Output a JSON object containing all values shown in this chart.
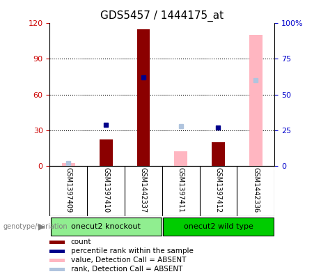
{
  "title": "GDS5457 / 1444175_at",
  "samples": [
    "GSM1397409",
    "GSM1397410",
    "GSM1442337",
    "GSM1397411",
    "GSM1397412",
    "GSM1442336"
  ],
  "groups": [
    {
      "name": "onecut2 knockout",
      "color": "#90ee90",
      "start": 0,
      "end": 2
    },
    {
      "name": "onecut2 wild type",
      "color": "#00cc00",
      "start": 3,
      "end": 5
    }
  ],
  "count_values": [
    2.5,
    22,
    115,
    12,
    20,
    110
  ],
  "rank_values": [
    2,
    29,
    62,
    28,
    27,
    60
  ],
  "absent": [
    true,
    false,
    false,
    true,
    false,
    true
  ],
  "ylim_left": [
    0,
    120
  ],
  "ylim_right": [
    0,
    100
  ],
  "yticks_left": [
    0,
    30,
    60,
    90,
    120
  ],
  "yticks_right": [
    0,
    25,
    50,
    75,
    100
  ],
  "yticklabels_left": [
    "0",
    "30",
    "60",
    "90",
    "120"
  ],
  "yticklabels_right": [
    "0",
    "25",
    "50",
    "75",
    "100%"
  ],
  "color_count_present": "#8b0000",
  "color_count_absent": "#ffb6c1",
  "color_rank_present": "#00008b",
  "color_rank_absent": "#b0c4de",
  "bar_width": 0.35,
  "bg_color": "#d3d3d3",
  "plot_bg": "#ffffff",
  "left_label_color": "#cc0000",
  "right_label_color": "#0000cc",
  "legend_items": [
    {
      "color": "#8b0000",
      "label": "count"
    },
    {
      "color": "#00008b",
      "label": "percentile rank within the sample"
    },
    {
      "color": "#ffb6c1",
      "label": "value, Detection Call = ABSENT"
    },
    {
      "color": "#b0c4de",
      "label": "rank, Detection Call = ABSENT"
    }
  ]
}
